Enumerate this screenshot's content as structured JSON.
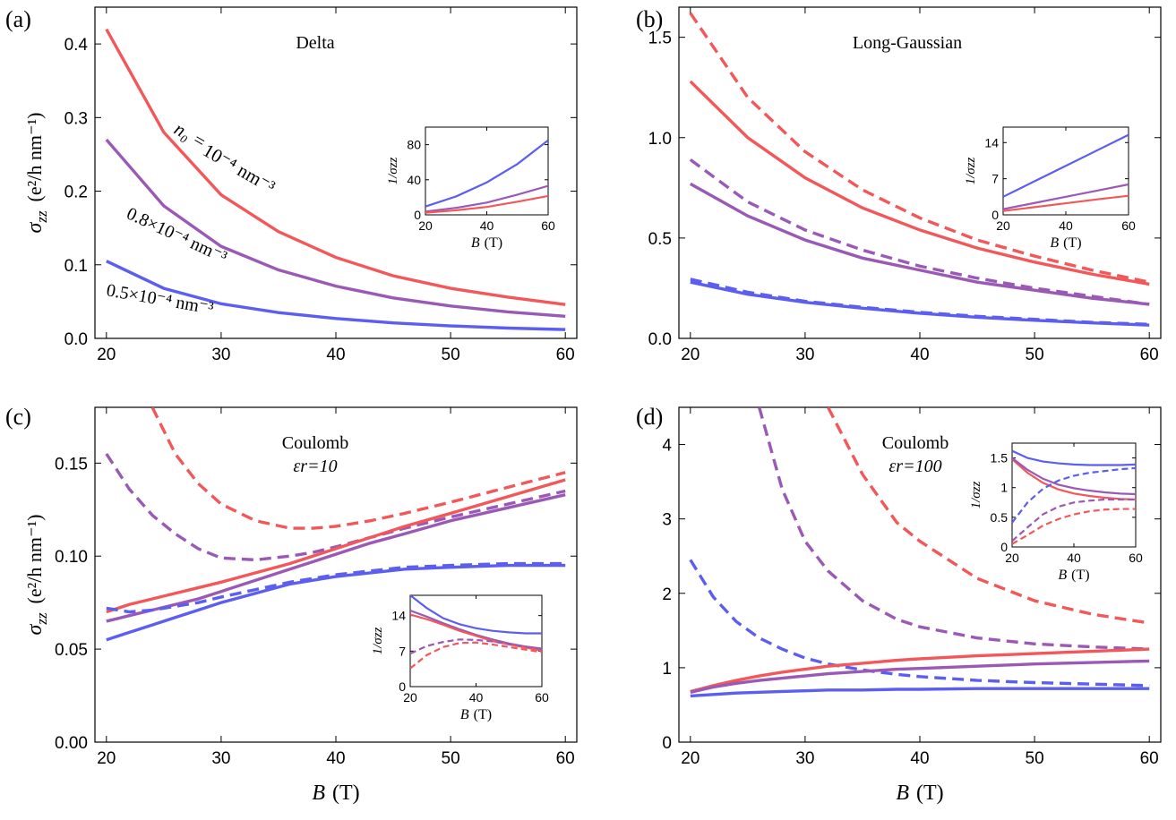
{
  "colors": {
    "red": "#f2575a",
    "purple": "#9b59b6",
    "blue": "#5c5ef0"
  },
  "chart_data": [
    {
      "panel": "(a)",
      "type": "line",
      "title": "Delta",
      "xlabel": "",
      "ylabel_sym": "σ",
      "ylabel_sub": "zz",
      "ylabel_unit": "(e²/h nm⁻¹)",
      "xlim": [
        19,
        61
      ],
      "ylim": [
        0,
        0.45
      ],
      "xticks": [
        20,
        30,
        40,
        50,
        60
      ],
      "xtick_labels": [
        "20",
        "30",
        "40",
        "50",
        "60"
      ],
      "yticks": [
        0,
        0.1,
        0.2,
        0.3,
        0.4
      ],
      "ytick_labels": [
        "0.0",
        "0.1",
        "0.2",
        "0.3",
        "0.4"
      ],
      "x": [
        20,
        25,
        30,
        35,
        40,
        45,
        50,
        55,
        60
      ],
      "series": [
        {
          "color": "red",
          "dash": false,
          "values": [
            0.42,
            0.28,
            0.195,
            0.145,
            0.11,
            0.085,
            0.068,
            0.056,
            0.046
          ]
        },
        {
          "color": "purple",
          "dash": false,
          "values": [
            0.27,
            0.18,
            0.125,
            0.093,
            0.071,
            0.055,
            0.044,
            0.036,
            0.03
          ]
        },
        {
          "color": "blue",
          "dash": false,
          "values": [
            0.105,
            0.068,
            0.047,
            0.035,
            0.027,
            0.021,
            0.017,
            0.014,
            0.012
          ]
        }
      ],
      "annotations": [
        {
          "text": "n₀ = ",
          "color": "#000000"
        },
        {
          "text": "10⁻⁴ nm⁻³",
          "color": "red"
        },
        {
          "text": "0.8×10⁻⁴ nm⁻³",
          "color": "purple"
        },
        {
          "text": "0.5×10⁻⁴ nm⁻³",
          "color": "blue"
        }
      ],
      "inset": {
        "ylabel": "1/σzz",
        "xlabel_sym": "B",
        "xlabel_unit": "(T)",
        "xlim": [
          20,
          60
        ],
        "ylim": [
          0,
          100
        ],
        "xticks": [
          20,
          40,
          60
        ],
        "xtick_labels": [
          "20",
          "40",
          "60"
        ],
        "yticks": [
          0,
          40,
          80
        ],
        "ytick_labels": [
          "0",
          "40",
          "80"
        ],
        "x": [
          20,
          30,
          40,
          50,
          60
        ],
        "series": [
          {
            "color": "blue",
            "dash": false,
            "values": [
              9.5,
              21,
              37,
              58,
              85
            ]
          },
          {
            "color": "purple",
            "dash": false,
            "values": [
              3.7,
              8,
              14,
              23,
              33
            ]
          },
          {
            "color": "red",
            "dash": false,
            "values": [
              2.4,
              5.2,
              9,
              15,
              21.5
            ]
          }
        ]
      }
    },
    {
      "panel": "(b)",
      "type": "line",
      "title": "Long-Gaussian",
      "xlabel": "",
      "ylabel_sym": "",
      "ylabel_sub": "",
      "ylabel_unit": "",
      "xlim": [
        19,
        61
      ],
      "ylim": [
        0,
        1.65
      ],
      "xticks": [
        20,
        30,
        40,
        50,
        60
      ],
      "xtick_labels": [
        "20",
        "30",
        "40",
        "50",
        "60"
      ],
      "yticks": [
        0,
        0.5,
        1.0,
        1.5
      ],
      "ytick_labels": [
        "0.0",
        "0.5",
        "1.0",
        "1.5"
      ],
      "x": [
        20,
        25,
        30,
        35,
        40,
        45,
        50,
        55,
        60
      ],
      "series": [
        {
          "color": "red",
          "dash": true,
          "values": [
            1.62,
            1.2,
            0.93,
            0.74,
            0.6,
            0.49,
            0.41,
            0.34,
            0.28
          ]
        },
        {
          "color": "red",
          "dash": false,
          "values": [
            1.28,
            1.0,
            0.8,
            0.65,
            0.54,
            0.45,
            0.38,
            0.32,
            0.27
          ]
        },
        {
          "color": "purple",
          "dash": true,
          "values": [
            0.89,
            0.68,
            0.54,
            0.44,
            0.36,
            0.3,
            0.25,
            0.21,
            0.17
          ]
        },
        {
          "color": "purple",
          "dash": false,
          "values": [
            0.77,
            0.61,
            0.49,
            0.4,
            0.34,
            0.28,
            0.24,
            0.2,
            0.17
          ]
        },
        {
          "color": "blue",
          "dash": true,
          "values": [
            0.295,
            0.23,
            0.185,
            0.155,
            0.13,
            0.11,
            0.095,
            0.08,
            0.07
          ]
        },
        {
          "color": "blue",
          "dash": false,
          "values": [
            0.28,
            0.22,
            0.18,
            0.15,
            0.125,
            0.105,
            0.09,
            0.077,
            0.066
          ]
        }
      ],
      "annotations": [],
      "inset": {
        "ylabel": "1/σzz",
        "xlabel_sym": "B",
        "xlabel_unit": "(T)",
        "xlim": [
          20,
          60
        ],
        "ylim": [
          0,
          17
        ],
        "xticks": [
          20,
          40,
          60
        ],
        "xtick_labels": [
          "20",
          "40",
          "60"
        ],
        "yticks": [
          0,
          7,
          14
        ],
        "ytick_labels": [
          "0",
          "7",
          "14"
        ],
        "x": [
          20,
          30,
          40,
          50,
          60
        ],
        "series": [
          {
            "color": "blue",
            "dash": false,
            "values": [
              3.5,
              6.5,
              9.5,
              12.5,
              15.5
            ]
          },
          {
            "color": "purple",
            "dash": false,
            "values": [
              1.1,
              2.3,
              3.5,
              4.7,
              5.9
            ]
          },
          {
            "color": "red",
            "dash": false,
            "values": [
              0.75,
              1.5,
              2.25,
              3.0,
              3.7
            ]
          }
        ]
      }
    },
    {
      "panel": "(c)",
      "type": "line",
      "title": "Coulomb",
      "subtitle": "εr=10",
      "xlabel_sym": "B",
      "xlabel_unit": "(T)",
      "ylabel_sym": "σ",
      "ylabel_sub": "zz",
      "ylabel_unit": "(e²/h nm⁻¹)",
      "xlim": [
        19,
        61
      ],
      "ylim": [
        0,
        0.18
      ],
      "xticks": [
        20,
        30,
        40,
        50,
        60
      ],
      "xtick_labels": [
        "20",
        "30",
        "40",
        "50",
        "60"
      ],
      "yticks": [
        0,
        0.05,
        0.1,
        0.15
      ],
      "ytick_labels": [
        "0.00",
        "0.05",
        "0.10",
        "0.15"
      ],
      "x": [
        20,
        22,
        24,
        26,
        28,
        30,
        33,
        36,
        38,
        40,
        43,
        46,
        50,
        55,
        60
      ],
      "series": [
        {
          "color": "red",
          "dash": true,
          "values": [
            null,
            null,
            0.18,
            0.155,
            0.139,
            0.128,
            0.119,
            0.115,
            0.115,
            0.116,
            0.119,
            0.123,
            0.129,
            0.137,
            0.145
          ]
        },
        {
          "color": "purple",
          "dash": true,
          "values": [
            0.155,
            0.136,
            0.122,
            0.112,
            0.104,
            0.099,
            0.098,
            0.1,
            0.102,
            0.105,
            0.11,
            0.115,
            0.121,
            0.128,
            0.135
          ]
        },
        {
          "color": "red",
          "dash": false,
          "values": [
            0.07,
            0.074,
            0.077,
            0.08,
            0.083,
            0.086,
            0.091,
            0.096,
            0.1,
            0.104,
            0.11,
            0.116,
            0.123,
            0.132,
            0.141
          ]
        },
        {
          "color": "purple",
          "dash": false,
          "values": [
            0.065,
            0.068,
            0.071,
            0.074,
            0.077,
            0.081,
            0.087,
            0.093,
            0.097,
            0.101,
            0.107,
            0.112,
            0.119,
            0.126,
            0.133
          ]
        },
        {
          "color": "blue",
          "dash": true,
          "values": [
            0.072,
            0.07,
            0.071,
            0.073,
            0.075,
            0.078,
            0.082,
            0.086,
            0.088,
            0.09,
            0.092,
            0.094,
            0.095,
            0.096,
            0.096
          ]
        },
        {
          "color": "blue",
          "dash": false,
          "values": [
            0.055,
            0.059,
            0.063,
            0.067,
            0.071,
            0.075,
            0.08,
            0.085,
            0.087,
            0.089,
            0.091,
            0.093,
            0.094,
            0.095,
            0.095
          ]
        }
      ],
      "annotations": [],
      "inset": {
        "ylabel": "1/σzz",
        "xlabel_sym": "B",
        "xlabel_unit": "(T)",
        "xlim": [
          20,
          60
        ],
        "ylim": [
          0,
          18
        ],
        "xticks": [
          20,
          40,
          60
        ],
        "xtick_labels": [
          "20",
          "40",
          "60"
        ],
        "yticks": [
          0,
          7,
          14
        ],
        "ytick_labels": [
          "0",
          "7",
          "14"
        ],
        "x": [
          20,
          25,
          30,
          35,
          40,
          45,
          50,
          55,
          60
        ],
        "series": [
          {
            "color": "blue",
            "dash": false,
            "values": [
              18,
              15.5,
              13.5,
              12.3,
              11.5,
              11.0,
              10.7,
              10.5,
              10.5
            ]
          },
          {
            "color": "purple",
            "dash": false,
            "values": [
              15,
              13.8,
              12.5,
              11.3,
              10.2,
              9.3,
              8.5,
              7.9,
              7.5
            ]
          },
          {
            "color": "red",
            "dash": false,
            "values": [
              14.2,
              13.3,
              12.2,
              11.0,
              10.0,
              9.0,
              8.3,
              7.7,
              7.1
            ]
          },
          {
            "color": "purple",
            "dash": true,
            "values": [
              6.5,
              8.0,
              8.8,
              9.3,
              9.2,
              8.9,
              8.4,
              7.9,
              7.4
            ]
          },
          {
            "color": "red",
            "dash": true,
            "values": [
              3.6,
              6.2,
              7.8,
              8.6,
              8.7,
              8.3,
              7.8,
              7.3,
              6.8
            ]
          }
        ]
      }
    },
    {
      "panel": "(d)",
      "type": "line",
      "title": "Coulomb",
      "subtitle": "εr=100",
      "xlabel_sym": "B",
      "xlabel_unit": "(T)",
      "ylabel_sym": "",
      "ylabel_sub": "",
      "ylabel_unit": "",
      "xlim": [
        19,
        61
      ],
      "ylim": [
        0,
        4.5
      ],
      "xticks": [
        20,
        30,
        40,
        50,
        60
      ],
      "xtick_labels": [
        "20",
        "30",
        "40",
        "50",
        "60"
      ],
      "yticks": [
        0,
        1,
        2,
        3,
        4
      ],
      "ytick_labels": [
        "0",
        "1",
        "2",
        "3",
        "4"
      ],
      "x": [
        20,
        22,
        24,
        26,
        28,
        30,
        32,
        35,
        38,
        40,
        45,
        50,
        55,
        60
      ],
      "series": [
        {
          "color": "red",
          "dash": true,
          "values": [
            null,
            null,
            null,
            null,
            null,
            null,
            4.5,
            3.6,
            2.95,
            2.7,
            2.2,
            1.9,
            1.72,
            1.6
          ]
        },
        {
          "color": "purple",
          "dash": true,
          "values": [
            null,
            null,
            null,
            4.5,
            3.4,
            2.7,
            2.3,
            1.9,
            1.65,
            1.55,
            1.4,
            1.32,
            1.28,
            1.25
          ]
        },
        {
          "color": "blue",
          "dash": true,
          "values": [
            2.45,
            1.95,
            1.62,
            1.4,
            1.25,
            1.13,
            1.05,
            0.97,
            0.91,
            0.88,
            0.83,
            0.8,
            0.78,
            0.76
          ]
        },
        {
          "color": "red",
          "dash": false,
          "values": [
            0.68,
            0.76,
            0.83,
            0.89,
            0.94,
            0.98,
            1.02,
            1.06,
            1.1,
            1.12,
            1.16,
            1.19,
            1.22,
            1.25
          ]
        },
        {
          "color": "purple",
          "dash": false,
          "values": [
            0.67,
            0.74,
            0.79,
            0.83,
            0.86,
            0.89,
            0.92,
            0.95,
            0.98,
            0.99,
            1.02,
            1.05,
            1.07,
            1.09
          ]
        },
        {
          "color": "blue",
          "dash": false,
          "values": [
            0.62,
            0.64,
            0.66,
            0.67,
            0.68,
            0.69,
            0.7,
            0.7,
            0.71,
            0.71,
            0.72,
            0.72,
            0.72,
            0.72
          ]
        }
      ],
      "annotations": [],
      "inset": {
        "ylabel": "1/σzz",
        "xlabel_sym": "B",
        "xlabel_unit": "(T)",
        "xlim": [
          20,
          60
        ],
        "ylim": [
          0,
          1.75
        ],
        "xticks": [
          20,
          40,
          60
        ],
        "xtick_labels": [
          "20",
          "40",
          "60"
        ],
        "yticks": [
          0,
          0.5,
          1,
          1.5
        ],
        "ytick_labels": [
          "0",
          "0.5",
          "1",
          "1.5"
        ],
        "x": [
          20,
          25,
          30,
          35,
          40,
          45,
          50,
          55,
          60
        ],
        "series": [
          {
            "color": "blue",
            "dash": false,
            "values": [
              1.62,
              1.5,
              1.44,
              1.41,
              1.39,
              1.38,
              1.38,
              1.38,
              1.39
            ]
          },
          {
            "color": "red",
            "dash": false,
            "values": [
              1.48,
              1.25,
              1.08,
              0.97,
              0.9,
              0.86,
              0.83,
              0.81,
              0.8
            ]
          },
          {
            "color": "purple",
            "dash": false,
            "values": [
              1.5,
              1.3,
              1.15,
              1.05,
              0.99,
              0.95,
              0.92,
              0.9,
              0.89
            ]
          },
          {
            "color": "blue",
            "dash": true,
            "values": [
              0.41,
              0.75,
              0.98,
              1.12,
              1.2,
              1.25,
              1.28,
              1.31,
              1.33
            ]
          },
          {
            "color": "purple",
            "dash": true,
            "values": [
              0.1,
              0.33,
              0.55,
              0.68,
              0.75,
              0.78,
              0.8,
              0.8,
              0.8
            ]
          },
          {
            "color": "red",
            "dash": true,
            "values": [
              0.05,
              0.2,
              0.36,
              0.47,
              0.55,
              0.6,
              0.63,
              0.64,
              0.64
            ]
          }
        ]
      }
    }
  ]
}
